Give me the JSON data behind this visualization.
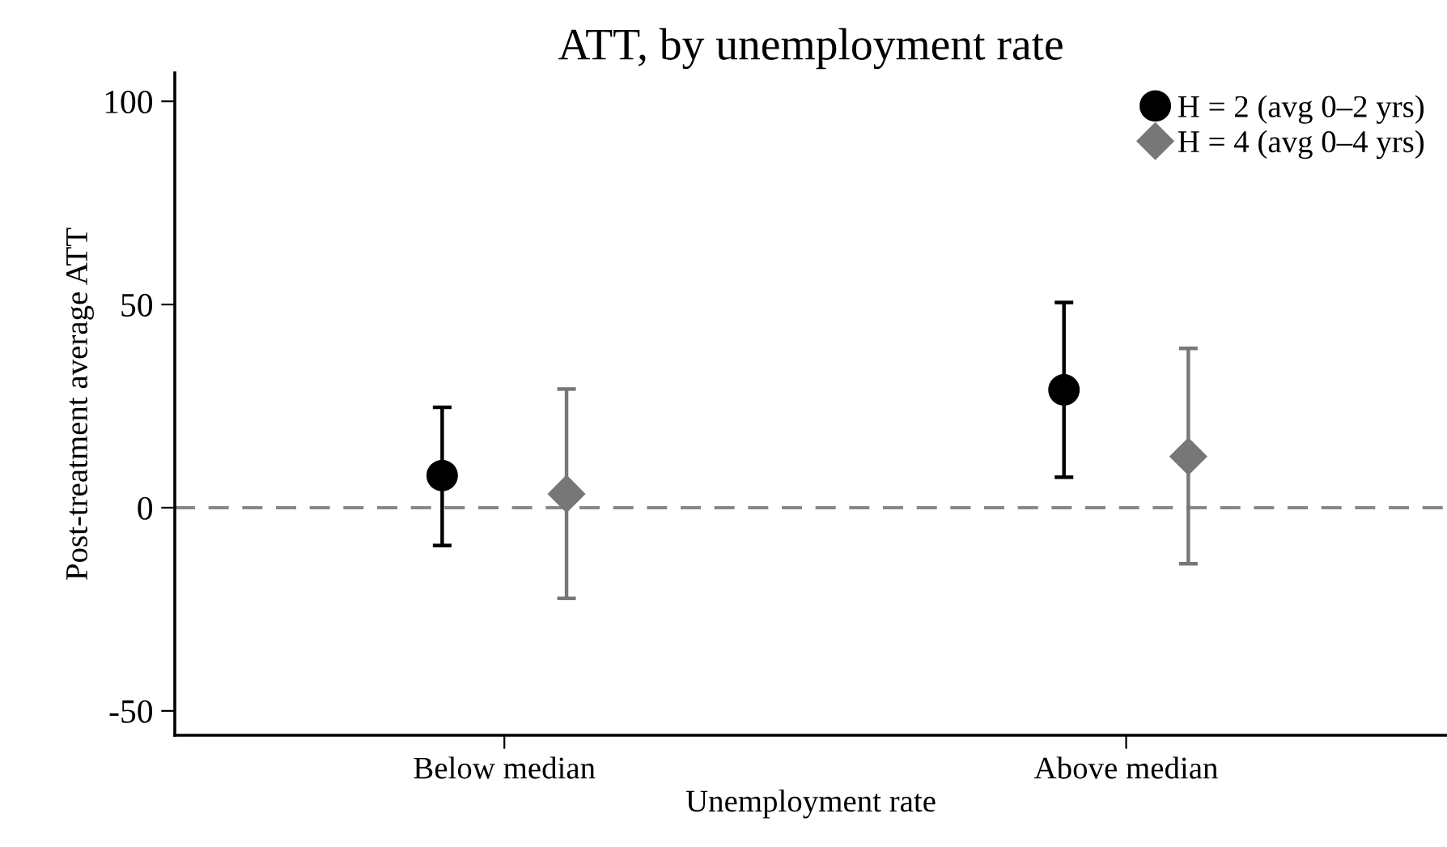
{
  "chart_data": {
    "type": "scatter",
    "title": "ATT, by unemployment rate",
    "xlabel": "Unemployment rate",
    "ylabel": "Post-treatment average ATT",
    "categories": [
      "Below median",
      "Above median"
    ],
    "series": [
      {
        "name": "H = 2 (avg 0–2 yrs)",
        "color": "#000000",
        "marker": "circle",
        "values": [
          7.9,
          29
        ],
        "errors": [
          [
            -9.3,
            24.7
          ],
          [
            7.5,
            50.5
          ]
        ]
      },
      {
        "name": "H = 4 (avg 0–4 yrs)",
        "color": "#777777",
        "marker": "diamond",
        "values": [
          3.4,
          12.6
        ],
        "errors": [
          [
            -22.3,
            29.2
          ],
          [
            -13.8,
            39.2
          ]
        ]
      }
    ],
    "ylim": [
      -56,
      107
    ],
    "yticks": [
      -50,
      0,
      50,
      100
    ],
    "ref_lines": [
      {
        "axis": "y",
        "value": 0,
        "color": "#888888",
        "line_style": "dashed"
      }
    ],
    "grid": false,
    "legend": "top right"
  }
}
